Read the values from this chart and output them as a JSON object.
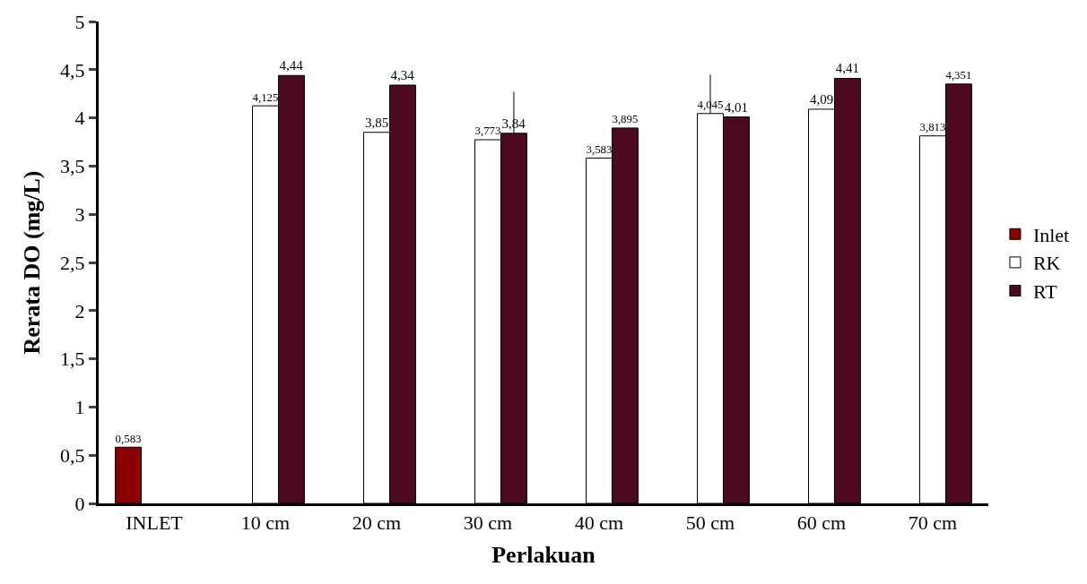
{
  "chart_data": {
    "type": "bar",
    "xlabel": "Perlakuan",
    "ylabel": "Rerata DO (mg/L)",
    "categories": [
      "INLET",
      "10 cm",
      "20 cm",
      "30 cm",
      "40 cm",
      "50 cm",
      "60 cm",
      "70 cm"
    ],
    "series": [
      {
        "name": "Inlet",
        "color": "#8b0000",
        "values": [
          0.583,
          null,
          null,
          null,
          null,
          null,
          null,
          null
        ],
        "value_labels": [
          "0,583",
          null,
          null,
          null,
          null,
          null,
          null,
          null
        ]
      },
      {
        "name": "RK",
        "color": "#ffffff",
        "values": [
          null,
          4.125,
          3.85,
          3.773,
          3.583,
          4.045,
          4.09,
          3.813
        ],
        "value_labels": [
          null,
          "4,125",
          "3,85",
          "3,773",
          "3,583",
          "4,045",
          "4,09",
          "3,813"
        ],
        "errors": [
          null,
          null,
          null,
          null,
          null,
          [
            4.045,
            4.45
          ],
          null,
          null
        ]
      },
      {
        "name": "RT",
        "color": "#4b0a1f",
        "values": [
          null,
          4.44,
          4.34,
          3.84,
          3.895,
          4.01,
          4.41,
          4.351
        ],
        "value_labels": [
          null,
          "4,44",
          "4,34",
          "3,84",
          "3,895",
          "4,01",
          "4,41",
          "4,351"
        ],
        "errors": [
          null,
          null,
          null,
          [
            3.84,
            4.27
          ],
          null,
          null,
          null,
          null
        ]
      }
    ],
    "ylim": [
      0,
      5
    ],
    "yticks": [
      0,
      {
        "value": 0.5,
        "label": "0,5"
      },
      1,
      {
        "value": 1.5,
        "label": "1,5"
      },
      2,
      {
        "value": 2.5,
        "label": "2,5"
      },
      3,
      {
        "value": 3.5,
        "label": "3,5"
      },
      4,
      {
        "value": 4.5,
        "label": "4,5"
      },
      5
    ],
    "legend": "right"
  }
}
